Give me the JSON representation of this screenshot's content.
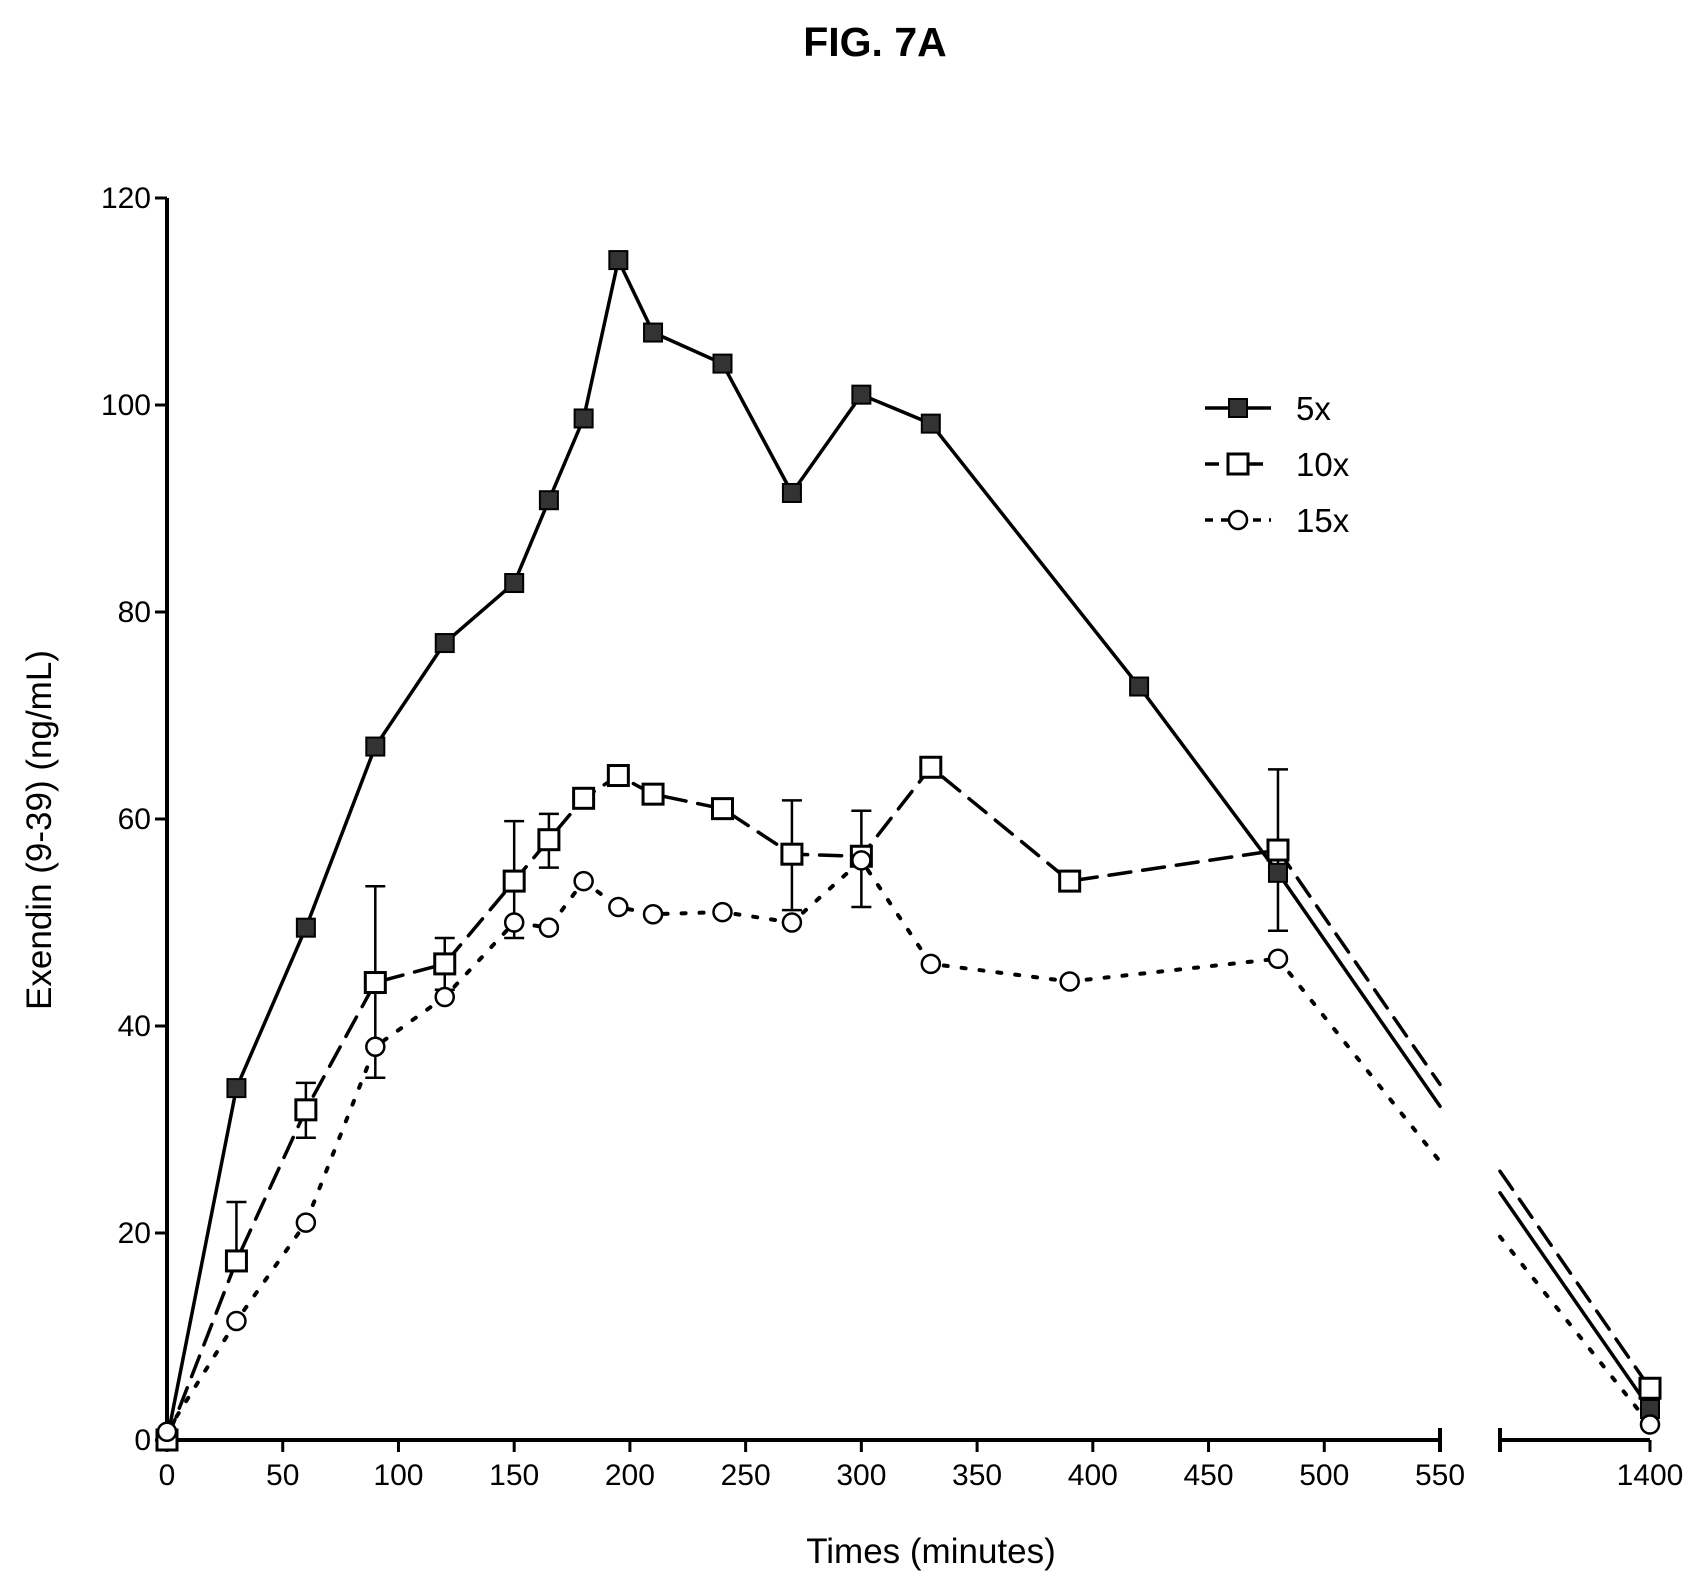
{
  "figure_title": "FIG. 7A",
  "chart_data": {
    "type": "line",
    "xlabel": "Times (minutes)",
    "ylabel": "Exendin (9-39) (ng/mL)",
    "xlim": [
      0,
      550
    ],
    "xlim_break_segment": [
      1330,
      1400
    ],
    "ylim": [
      0,
      120
    ],
    "xticks": [
      0,
      50,
      100,
      150,
      200,
      250,
      300,
      350,
      400,
      450,
      500,
      550,
      1400
    ],
    "yticks": [
      0,
      20,
      40,
      60,
      80,
      100,
      120
    ],
    "x_axis_break": "between 550 and 1400",
    "grid": false,
    "legend_position": "top-right",
    "series": [
      {
        "name": "5x",
        "line_style": "solid",
        "marker": "filled-square",
        "x": [
          0,
          30,
          60,
          90,
          120,
          150,
          165,
          180,
          195,
          210,
          240,
          270,
          300,
          330,
          420,
          480,
          1400
        ],
        "y": [
          0,
          34,
          49.5,
          67,
          77,
          82.8,
          90.8,
          98.7,
          114,
          107,
          104,
          91.5,
          101,
          98.2,
          72.8,
          54.8,
          3
        ]
      },
      {
        "name": "10x",
        "line_style": "dashed",
        "marker": "open-square",
        "x": [
          0,
          30,
          60,
          90,
          120,
          150,
          165,
          180,
          195,
          210,
          240,
          270,
          300,
          330,
          390,
          480,
          1400
        ],
        "y": [
          0,
          17.3,
          31.9,
          44.2,
          46,
          54,
          58,
          62,
          64.2,
          62.4,
          61,
          56.6,
          56.4,
          65,
          54,
          57,
          5
        ],
        "error_high": [
          0,
          23,
          34.5,
          53.5,
          48.5,
          59.8,
          60.5,
          0,
          0,
          0,
          0,
          61.8,
          60.8,
          0,
          0,
          64.8,
          0
        ],
        "error_low": [
          0,
          0,
          29.2,
          35,
          43.5,
          48.5,
          55.3,
          0,
          0,
          0,
          0,
          51.2,
          51.5,
          0,
          0,
          49.2,
          0
        ]
      },
      {
        "name": "15x",
        "line_style": "dotted",
        "marker": "open-circle",
        "x": [
          0,
          30,
          60,
          90,
          120,
          150,
          165,
          180,
          195,
          210,
          240,
          270,
          300,
          330,
          390,
          480,
          1400
        ],
        "y": [
          0.8,
          11.5,
          21,
          38,
          42.8,
          50,
          49.5,
          54,
          51.5,
          50.8,
          51,
          50,
          56,
          46,
          44.3,
          46.5,
          1.5
        ]
      }
    ]
  }
}
